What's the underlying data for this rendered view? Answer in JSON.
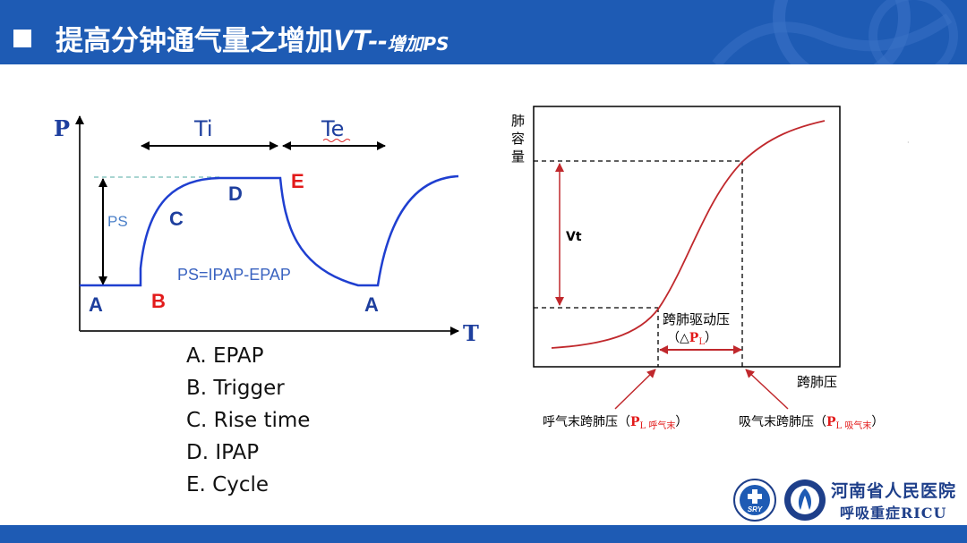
{
  "header": {
    "title_main": "提高分钟通气量之增加",
    "title_vt": "VT--",
    "title_small": "增加PS"
  },
  "left_diagram": {
    "y_axis_label": "P",
    "x_axis_label": "T",
    "ti_label": "Ti",
    "te_label": "Te",
    "ps_label": "PS",
    "formula": "PS=IPAP-EPAP",
    "point_a1": "A",
    "point_b": "B",
    "point_c": "C",
    "point_d": "D",
    "point_e": "E",
    "point_a2": "A"
  },
  "legend": [
    "A.  EPAP",
    "B.  Trigger",
    "C.  Rise time",
    "D.  IPAP",
    "E.  Cycle"
  ],
  "right_diagram": {
    "y_axis_label": [
      "肺",
      "容",
      "量"
    ],
    "x_axis_label": "跨肺压",
    "vt_label": "Vt",
    "drive_label": "跨肺驱动压",
    "drive_paren_open": "（△",
    "drive_sym": "P",
    "drive_sub": "L",
    "drive_paren_close": "）",
    "exp_label": "呼气末跨肺压（",
    "exp_sym": "P",
    "exp_sub": "L 呼气末",
    "exp_close": "）",
    "insp_label": "吸气末跨肺压（",
    "insp_sym": "P",
    "insp_sub": "L 吸气末",
    "insp_close": "）"
  },
  "logo": {
    "line1": "河南省人民医院",
    "line2": "呼吸重症RICU"
  },
  "colors": {
    "header_bg": "#1e5bb4",
    "curve_blue": "#1f3fd0",
    "curve_red": "#c0282c",
    "label_red": "#e21a1a"
  }
}
